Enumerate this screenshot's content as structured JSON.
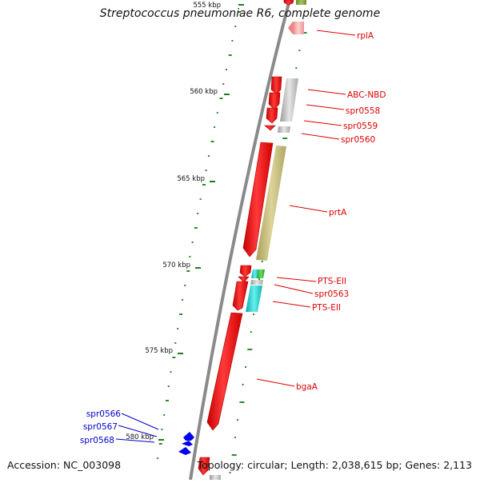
{
  "title": "Streptococcus pneumoniae R6, complete genome",
  "footer": {
    "accession": "Accession: NC_003098",
    "summary": "Topology: circular; Length: 2,038,615 bp; Genes: 2,113"
  },
  "ticks": [
    {
      "label": "555 kbp"
    },
    {
      "label": "560 kbp"
    },
    {
      "label": "565 kbp"
    },
    {
      "label": "570 kbp"
    },
    {
      "label": "575 kbp"
    },
    {
      "label": "580 kbp"
    }
  ],
  "gene_labels": {
    "forward_strand": [
      "rplA",
      "ABC-NBD",
      "spr0558",
      "spr0559",
      "spr0560",
      "prtA",
      "PTS-EII",
      "spr0563",
      "PTS-EII",
      "bgaA"
    ],
    "reverse_strand": [
      "spr0566",
      "spr0567",
      "spr0568"
    ]
  },
  "colors": {
    "forward_label": "#dd0000",
    "reverse_label": "#0000cc",
    "cds_forward": "#ee0000",
    "cds_reverse": "#0000ee",
    "backbone": "#8a8a8a",
    "gc_dots": "#2a8a2a",
    "feature_olive": "#c8be7a",
    "feature_grey": "#bfbfbf",
    "feature_pink": "#f3a0a0",
    "feature_cyan": "#22cccc",
    "feature_green": "#33bb33"
  }
}
